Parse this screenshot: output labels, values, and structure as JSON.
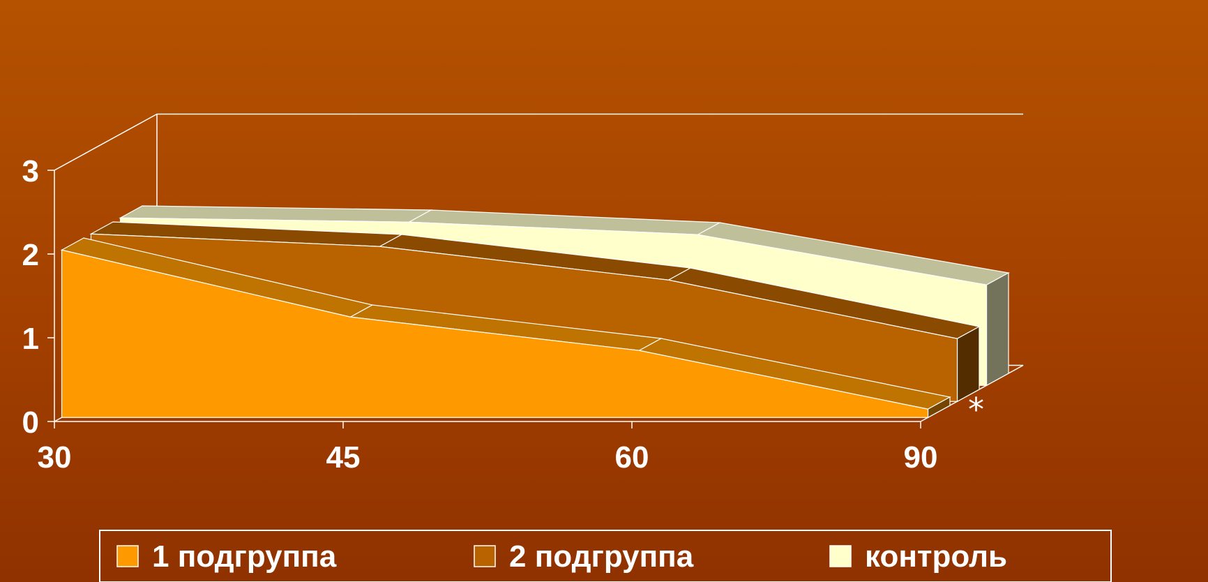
{
  "chart_data": {
    "type": "area",
    "style": "3d-stacked-ribbons",
    "categories": [
      "30",
      "45",
      "60",
      "90"
    ],
    "ylim": [
      0,
      3
    ],
    "yticks": [
      "0",
      "1",
      "2",
      "3"
    ],
    "series": [
      {
        "name": "1 подгруппа",
        "values": [
          2.0,
          1.2,
          0.8,
          0.1
        ],
        "color": "#ff9900"
      },
      {
        "name": "2 подгруппа",
        "values": [
          2.0,
          1.85,
          1.45,
          0.75
        ],
        "color": "#b86200"
      },
      {
        "name": "контроль",
        "values": [
          2.0,
          1.95,
          1.8,
          1.2
        ],
        "color": "#ffffcc"
      }
    ],
    "annotation": "*",
    "legend_position": "bottom",
    "grid": false
  }
}
